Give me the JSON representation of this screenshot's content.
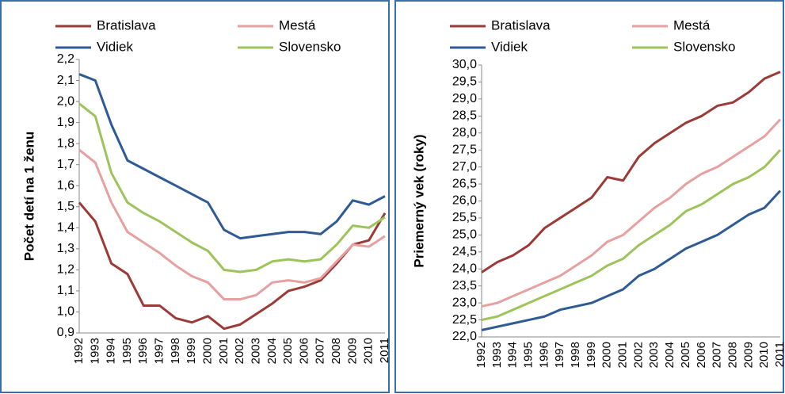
{
  "chart_data": [
    {
      "type": "line",
      "y_label": "Počet detí na 1 ženu",
      "categories": [
        "1992",
        "1993",
        "1994",
        "1995",
        "1996",
        "1997",
        "1998",
        "1999",
        "2000",
        "2001",
        "2002",
        "2003",
        "2004",
        "2005",
        "2006",
        "2007",
        "2008",
        "2009",
        "2010",
        "2011"
      ],
      "ylim": [
        0.9,
        2.2
      ],
      "yticks": [
        {
          "value": 0.9,
          "label": "0,9"
        },
        {
          "value": 1.0,
          "label": "1,0"
        },
        {
          "value": 1.1,
          "label": "1,1"
        },
        {
          "value": 1.2,
          "label": "1,2"
        },
        {
          "value": 1.3,
          "label": "1,3"
        },
        {
          "value": 1.4,
          "label": "1,4"
        },
        {
          "value": 1.5,
          "label": "1,5"
        },
        {
          "value": 1.6,
          "label": "1,6"
        },
        {
          "value": 1.7,
          "label": "1,7"
        },
        {
          "value": 1.8,
          "label": "1,8"
        },
        {
          "value": 1.9,
          "label": "1,9"
        },
        {
          "value": 2.0,
          "label": "2,0"
        },
        {
          "value": 2.1,
          "label": "2,1"
        },
        {
          "value": 2.2,
          "label": "2,2"
        }
      ],
      "series": [
        {
          "name": "Bratislava",
          "color": "#9b3a36",
          "values": [
            1.52,
            1.43,
            1.23,
            1.18,
            1.03,
            1.03,
            0.97,
            0.95,
            0.98,
            0.92,
            0.94,
            0.99,
            1.04,
            1.1,
            1.12,
            1.15,
            1.23,
            1.32,
            1.34,
            1.47
          ]
        },
        {
          "name": "Mestá",
          "color": "#e6a0a0",
          "values": [
            1.77,
            1.71,
            1.52,
            1.38,
            1.33,
            1.28,
            1.22,
            1.17,
            1.14,
            1.06,
            1.06,
            1.08,
            1.14,
            1.15,
            1.14,
            1.16,
            1.24,
            1.32,
            1.31,
            1.36
          ]
        },
        {
          "name": "Vidiek",
          "color": "#2e5a95",
          "values": [
            2.13,
            2.1,
            1.89,
            1.72,
            1.68,
            1.64,
            1.6,
            1.56,
            1.52,
            1.39,
            1.35,
            1.36,
            1.37,
            1.38,
            1.38,
            1.37,
            1.43,
            1.53,
            1.51,
            1.55
          ]
        },
        {
          "name": "Slovensko",
          "color": "#9dc45a",
          "values": [
            1.99,
            1.93,
            1.66,
            1.52,
            1.47,
            1.43,
            1.38,
            1.33,
            1.29,
            1.2,
            1.19,
            1.2,
            1.24,
            1.25,
            1.24,
            1.25,
            1.32,
            1.41,
            1.4,
            1.45
          ]
        }
      ]
    },
    {
      "type": "line",
      "y_label": "Priemerný vek (roky)",
      "categories": [
        "1992",
        "1993",
        "1994",
        "1995",
        "1996",
        "1997",
        "1998",
        "1999",
        "2000",
        "2001",
        "2002",
        "2003",
        "2004",
        "2005",
        "2006",
        "2007",
        "2008",
        "2009",
        "2010",
        "2011"
      ],
      "ylim": [
        22.0,
        30.0
      ],
      "yticks": [
        {
          "value": 22.0,
          "label": "22,0"
        },
        {
          "value": 22.5,
          "label": "22,5"
        },
        {
          "value": 23.0,
          "label": "23,0"
        },
        {
          "value": 23.5,
          "label": "23,5"
        },
        {
          "value": 24.0,
          "label": "24,0"
        },
        {
          "value": 24.5,
          "label": "24,5"
        },
        {
          "value": 25.0,
          "label": "25,0"
        },
        {
          "value": 25.5,
          "label": "25,5"
        },
        {
          "value": 26.0,
          "label": "26,0"
        },
        {
          "value": 26.5,
          "label": "26,5"
        },
        {
          "value": 27.0,
          "label": "27,0"
        },
        {
          "value": 27.5,
          "label": "27,5"
        },
        {
          "value": 28.0,
          "label": "28,0"
        },
        {
          "value": 28.5,
          "label": "28,5"
        },
        {
          "value": 29.0,
          "label": "29,0"
        },
        {
          "value": 29.5,
          "label": "29,5"
        },
        {
          "value": 30.0,
          "label": "30,0"
        }
      ],
      "series": [
        {
          "name": "Bratislava",
          "color": "#9b3a36",
          "values": [
            23.9,
            24.2,
            24.4,
            24.7,
            25.2,
            25.5,
            25.8,
            26.1,
            26.7,
            26.6,
            27.3,
            27.7,
            28.0,
            28.3,
            28.5,
            28.8,
            28.9,
            29.2,
            29.6,
            29.8
          ]
        },
        {
          "name": "Mestá",
          "color": "#e6a0a0",
          "values": [
            22.9,
            23.0,
            23.2,
            23.4,
            23.6,
            23.8,
            24.1,
            24.4,
            24.8,
            25.0,
            25.4,
            25.8,
            26.1,
            26.5,
            26.8,
            27.0,
            27.3,
            27.6,
            27.9,
            28.4
          ]
        },
        {
          "name": "Vidiek",
          "color": "#2e5a95",
          "values": [
            22.2,
            22.3,
            22.4,
            22.5,
            22.6,
            22.8,
            22.9,
            23.0,
            23.2,
            23.4,
            23.8,
            24.0,
            24.3,
            24.6,
            24.8,
            25.0,
            25.3,
            25.6,
            25.8,
            26.3
          ]
        },
        {
          "name": "Slovensko",
          "color": "#9dc45a",
          "values": [
            22.5,
            22.6,
            22.8,
            23.0,
            23.2,
            23.4,
            23.6,
            23.8,
            24.1,
            24.3,
            24.7,
            25.0,
            25.3,
            25.7,
            25.9,
            26.2,
            26.5,
            26.7,
            27.0,
            27.5
          ]
        }
      ]
    }
  ]
}
